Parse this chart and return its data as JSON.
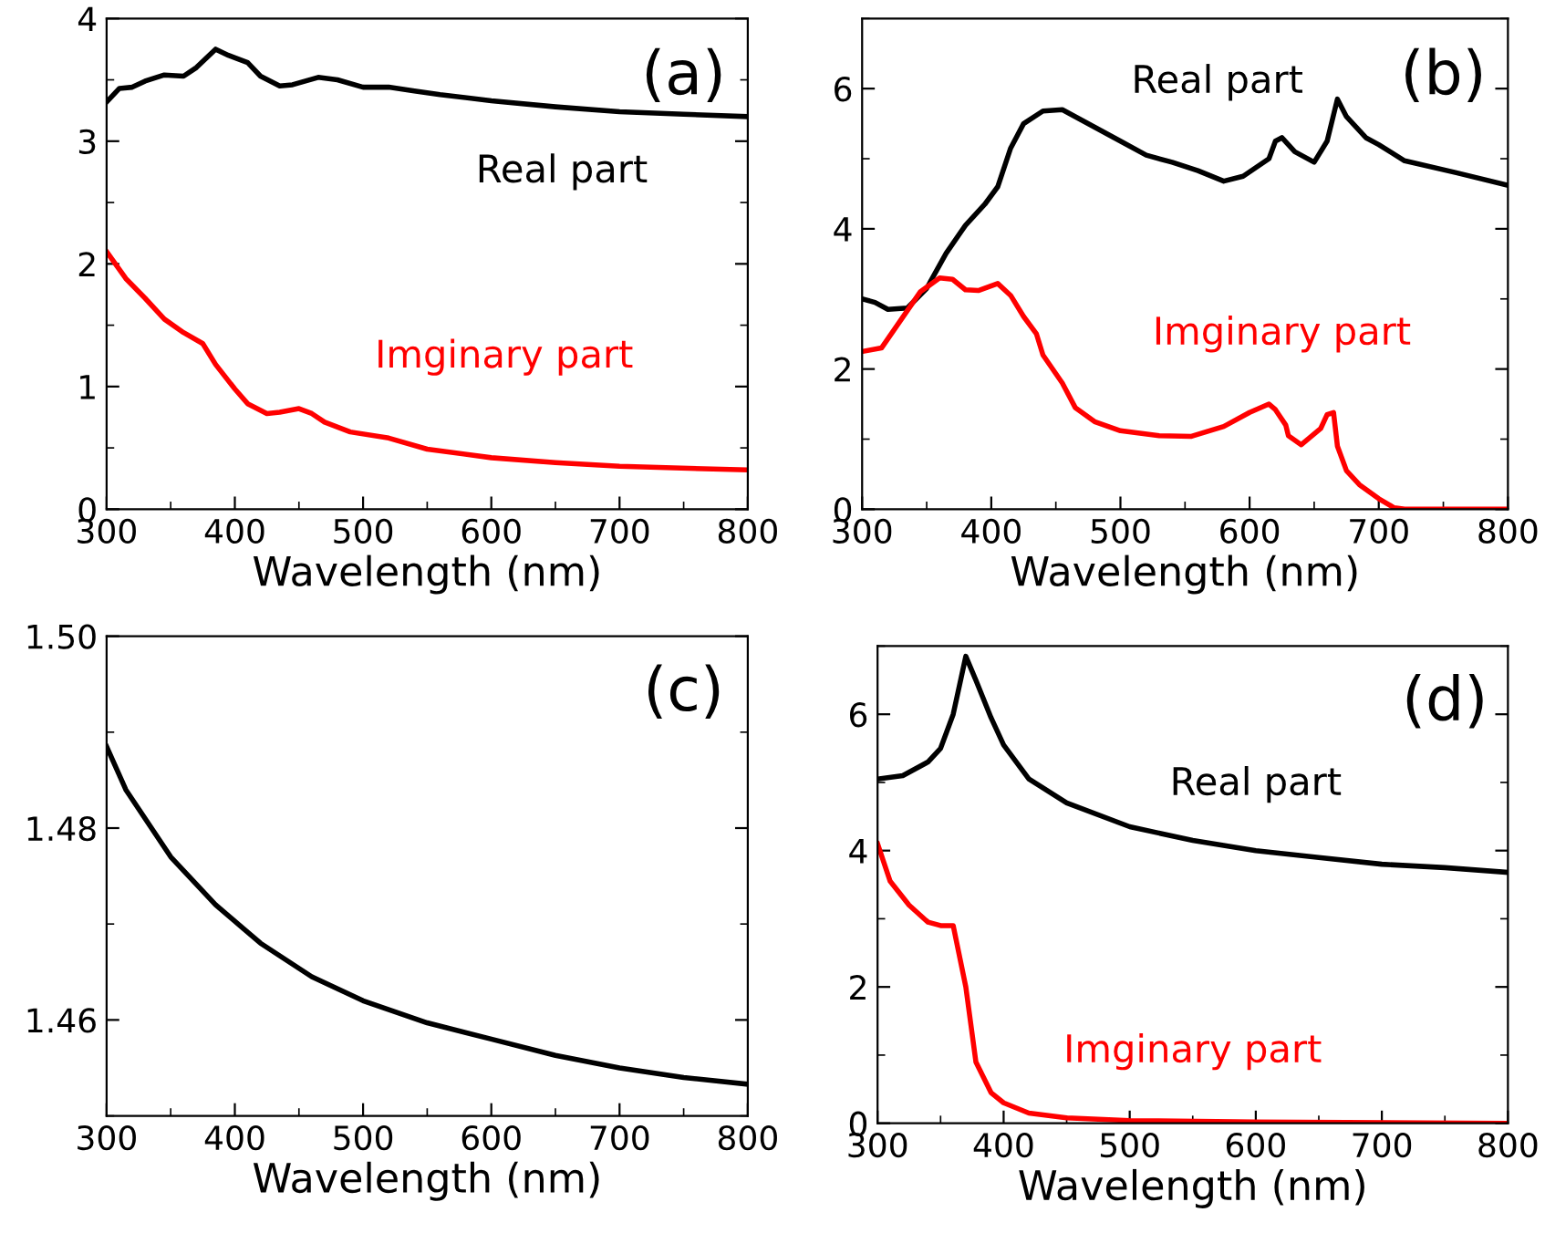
{
  "chart_data": [
    {
      "type": "line",
      "title": "(a)",
      "xlabel": "Wavelength (nm)",
      "xlim": [
        300,
        800
      ],
      "xticks": [
        300,
        400,
        500,
        600,
        700,
        800
      ],
      "ylim": [
        0,
        4
      ],
      "yticks": [
        0,
        1,
        2,
        3,
        4
      ],
      "grid": false,
      "legend": false,
      "marker": "none",
      "line_style": "solid",
      "series": [
        {
          "name": "Real part",
          "color": "#000000",
          "x": [
            300,
            310,
            320,
            330,
            345,
            360,
            370,
            385,
            395,
            410,
            420,
            435,
            445,
            465,
            480,
            500,
            520,
            540,
            560,
            600,
            650,
            700,
            750,
            800
          ],
          "values": [
            3.32,
            3.43,
            3.44,
            3.49,
            3.54,
            3.53,
            3.6,
            3.75,
            3.7,
            3.64,
            3.53,
            3.45,
            3.46,
            3.52,
            3.5,
            3.44,
            3.44,
            3.41,
            3.38,
            3.33,
            3.28,
            3.24,
            3.22,
            3.2
          ]
        },
        {
          "name": "Imginary part",
          "color": "#ff0000",
          "x": [
            300,
            315,
            330,
            345,
            360,
            375,
            385,
            400,
            410,
            425,
            435,
            450,
            460,
            470,
            490,
            520,
            550,
            600,
            650,
            700,
            800
          ],
          "values": [
            2.1,
            1.88,
            1.72,
            1.55,
            1.44,
            1.35,
            1.18,
            0.98,
            0.86,
            0.78,
            0.79,
            0.82,
            0.78,
            0.71,
            0.63,
            0.58,
            0.49,
            0.42,
            0.38,
            0.35,
            0.32
          ]
        }
      ]
    },
    {
      "type": "line",
      "title": "(b)",
      "xlabel": "Wavelength (nm)",
      "xlim": [
        300,
        800
      ],
      "xticks": [
        300,
        400,
        500,
        600,
        700,
        800
      ],
      "ylim": [
        0,
        7
      ],
      "yticks": [
        0,
        2,
        4,
        6
      ],
      "grid": false,
      "legend": false,
      "marker": "none",
      "line_style": "solid",
      "series": [
        {
          "name": "Real part",
          "color": "#000000",
          "x": [
            300,
            310,
            320,
            335,
            350,
            365,
            380,
            395,
            405,
            415,
            425,
            440,
            455,
            470,
            500,
            520,
            540,
            560,
            580,
            595,
            615,
            620,
            625,
            635,
            650,
            660,
            668,
            675,
            690,
            700,
            720,
            760,
            800
          ],
          "values": [
            3.0,
            2.95,
            2.85,
            2.87,
            3.15,
            3.65,
            4.05,
            4.35,
            4.6,
            5.15,
            5.5,
            5.68,
            5.7,
            5.55,
            5.25,
            5.05,
            4.95,
            4.83,
            4.68,
            4.75,
            5.0,
            5.25,
            5.3,
            5.1,
            4.95,
            5.25,
            5.85,
            5.6,
            5.3,
            5.2,
            4.97,
            4.8,
            4.62
          ]
        },
        {
          "name": "Imginary part",
          "color": "#ff0000",
          "x": [
            300,
            315,
            330,
            345,
            360,
            370,
            380,
            390,
            405,
            415,
            425,
            435,
            440,
            455,
            465,
            480,
            500,
            530,
            555,
            580,
            600,
            615,
            620,
            628,
            630,
            640,
            655,
            660,
            665,
            668,
            675,
            685,
            700,
            712,
            720,
            800
          ],
          "values": [
            2.25,
            2.3,
            2.7,
            3.1,
            3.3,
            3.28,
            3.13,
            3.12,
            3.22,
            3.05,
            2.75,
            2.5,
            2.2,
            1.8,
            1.45,
            1.25,
            1.12,
            1.05,
            1.04,
            1.18,
            1.38,
            1.5,
            1.42,
            1.2,
            1.05,
            0.92,
            1.15,
            1.35,
            1.38,
            0.9,
            0.55,
            0.35,
            0.15,
            0.02,
            0.0,
            0.0
          ]
        }
      ]
    },
    {
      "type": "line",
      "title": "(c)",
      "xlabel": "Wavelength (nm)",
      "xlim": [
        300,
        800
      ],
      "xticks": [
        300,
        400,
        500,
        600,
        700,
        800
      ],
      "ylim": [
        1.45,
        1.5
      ],
      "yticks": [
        {
          "value": 1.46,
          "label": "1.46"
        },
        {
          "value": 1.48,
          "label": "1.48"
        },
        {
          "value": 1.5,
          "label": "1.50"
        }
      ],
      "grid": false,
      "legend": false,
      "marker": "none",
      "line_style": "solid",
      "series": [
        {
          "color": "#000000",
          "x": [
            300,
            315,
            350,
            385,
            420,
            460,
            500,
            550,
            600,
            650,
            700,
            750,
            800
          ],
          "values": [
            1.4885,
            1.484,
            1.477,
            1.472,
            1.468,
            1.4645,
            1.462,
            1.4597,
            1.458,
            1.4563,
            1.455,
            1.454,
            1.4533
          ]
        }
      ]
    },
    {
      "type": "line",
      "title": "(d)",
      "xlabel": "Wavelength (nm)",
      "xlim": [
        300,
        800
      ],
      "xticks": [
        300,
        400,
        500,
        600,
        700,
        800
      ],
      "ylim": [
        0,
        7
      ],
      "yticks": [
        0,
        2,
        4,
        6
      ],
      "grid": false,
      "legend": false,
      "marker": "none",
      "line_style": "solid",
      "series": [
        {
          "name": "Real part",
          "color": "#000000",
          "x": [
            300,
            320,
            340,
            350,
            360,
            370,
            378,
            390,
            400,
            420,
            450,
            500,
            550,
            600,
            650,
            700,
            750,
            800
          ],
          "values": [
            5.05,
            5.1,
            5.3,
            5.5,
            6.0,
            6.85,
            6.5,
            5.95,
            5.55,
            5.05,
            4.7,
            4.35,
            4.15,
            4.0,
            3.9,
            3.8,
            3.75,
            3.68
          ]
        },
        {
          "name": "Imginary part",
          "color": "#ff0000",
          "x": [
            300,
            310,
            325,
            340,
            350,
            360,
            370,
            378,
            390,
            400,
            420,
            450,
            500,
            600,
            800
          ],
          "values": [
            4.1,
            3.55,
            3.2,
            2.95,
            2.9,
            2.9,
            2.0,
            0.9,
            0.45,
            0.3,
            0.15,
            0.08,
            0.04,
            0.02,
            0.0
          ]
        }
      ]
    }
  ]
}
